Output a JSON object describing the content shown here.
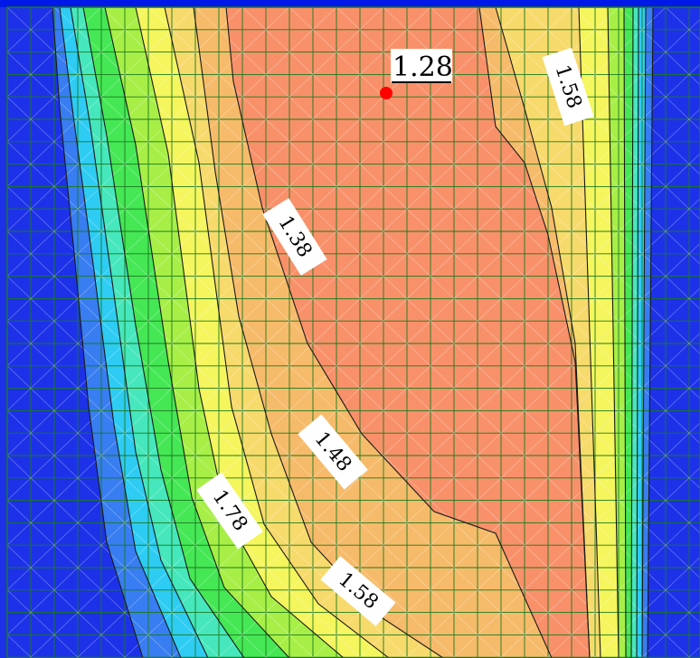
{
  "contour_labels": [
    "1.58",
    "1.38",
    "1.48",
    "1.78",
    "1.58"
  ],
  "minimum_value": "1.28",
  "colors": {
    "outer_band": "#0018e8",
    "band_blue_2": "#1f6ef2",
    "band_cyan": "#14c8f4",
    "band_aqua": "#2fe6b6",
    "band_green": "#2ee640",
    "band_lightgreen": "#9ef030",
    "band_yellow": "#f6f64a",
    "band_lightorange": "#f9d85a",
    "band_orange": "#f8b458",
    "core": "#fa8458",
    "grid_line": "#1b7a1e",
    "contour_line": "#1a1a1a",
    "minimum_marker": "#ff0000"
  }
}
